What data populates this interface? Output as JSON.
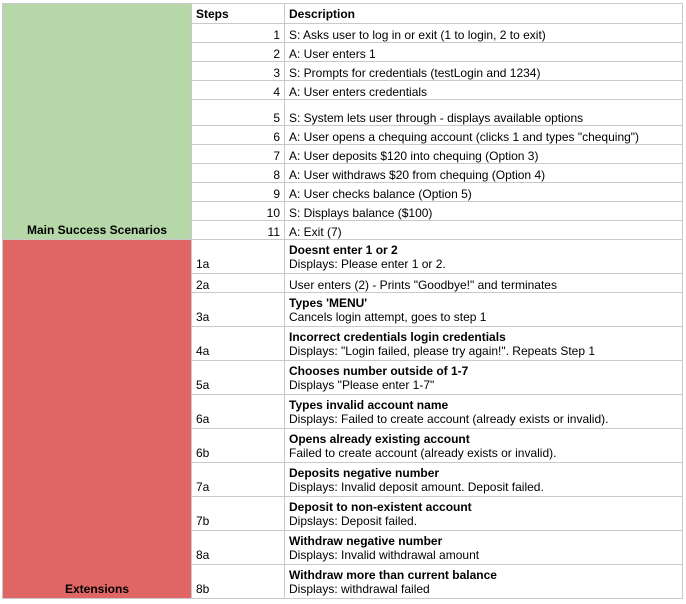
{
  "header": {
    "steps_label": "Steps",
    "description_label": "Description"
  },
  "groups": {
    "main": "Main Success Scenarios",
    "extensions": "Extensions"
  },
  "main_rows": [
    {
      "step": "1",
      "description": "S: Asks user to log in or exit (1 to login, 2 to exit)"
    },
    {
      "step": "2",
      "description": "A: User enters 1"
    },
    {
      "step": "3",
      "description": "S: Prompts for credentials (testLogin and 1234)"
    },
    {
      "step": "4",
      "description": "A: User enters credentials"
    },
    {
      "step": "5",
      "description": "S: System lets user through - displays available options"
    },
    {
      "step": "6",
      "description": "A: User opens a chequing account (clicks 1 and types \"chequing\")"
    },
    {
      "step": "7",
      "description": "A: User deposits $120 into chequing (Option 3)"
    },
    {
      "step": "8",
      "description": "A: User withdraws $20 from chequing (Option 4)"
    },
    {
      "step": "9",
      "description": "A: User checks balance (Option 5)"
    },
    {
      "step": "10",
      "description": "S: Displays balance ($100)"
    },
    {
      "step": "11",
      "description": "A: Exit (7)"
    }
  ],
  "ext_rows": [
    {
      "step": "1a",
      "title": "Doesnt enter 1 or 2",
      "detail": "Displays: Please enter 1 or 2."
    },
    {
      "step": "2a",
      "title": "",
      "detail": "User enters (2) - Prints \"Goodbye!\" and terminates"
    },
    {
      "step": "3a",
      "title": "Types 'MENU'",
      "detail": "Cancels login attempt, goes to step 1"
    },
    {
      "step": "4a",
      "title": "Incorrect credentials login credentials",
      "detail": "Displays: \"Login failed, please try again!\". Repeats Step 1"
    },
    {
      "step": "5a",
      "title": "Chooses number outside of 1-7",
      "detail": "Displays \"Please enter 1-7\""
    },
    {
      "step": "6a",
      "title": "Types invalid account name",
      "detail": "Displays: Failed to create account (already exists or invalid)."
    },
    {
      "step": "6b",
      "title": "Opens already existing account",
      "detail": "Failed to create account (already exists or invalid)."
    },
    {
      "step": "7a",
      "title": "Deposits negative number",
      "detail": "Displays: Invalid deposit amount. Deposit failed."
    },
    {
      "step": "7b",
      "title": "Deposit to non-existent account",
      "detail": "Dipslays: Deposit failed."
    },
    {
      "step": "8a",
      "title": "Withdraw negative number",
      "detail": "Displays: Invalid withdrawal amount"
    },
    {
      "step": "8b",
      "title": "Withdraw more than current balance",
      "detail": "Displays: withdrawal failed"
    }
  ],
  "colors": {
    "main_group": "#b6d7a8",
    "extensions_group": "#e06666",
    "grid": "#c9c9c9"
  }
}
